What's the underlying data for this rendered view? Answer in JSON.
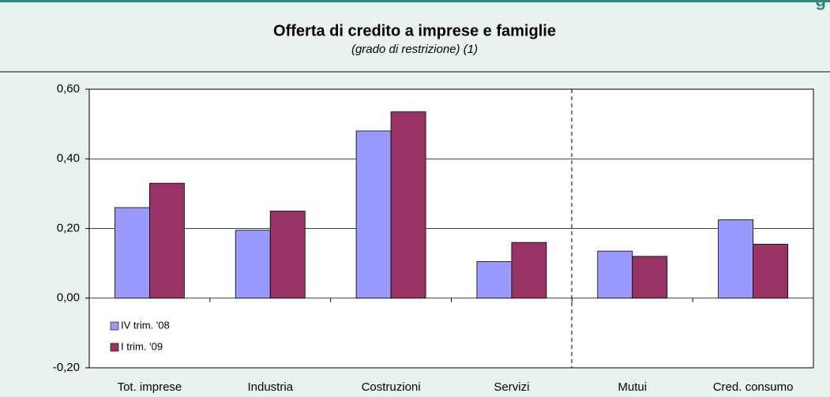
{
  "corner_label": "g",
  "chart_data": {
    "type": "bar",
    "title": "Offerta di credito a imprese e famiglie",
    "subtitle": "(grado di restrizione) (1)",
    "categories": [
      "Tot. imprese",
      "Industria",
      "Costruzioni",
      "Servizi",
      "Mutui",
      "Cred. consumo"
    ],
    "series": [
      {
        "name": "IV trim. '08",
        "color": "#9999ff",
        "values": [
          0.26,
          0.195,
          0.48,
          0.105,
          0.135,
          0.225
        ]
      },
      {
        "name": "I trim. '09",
        "color": "#993366",
        "values": [
          0.33,
          0.25,
          0.535,
          0.16,
          0.12,
          0.155
        ]
      }
    ],
    "ylim": [
      -0.2,
      0.6
    ],
    "yticks": [
      {
        "value": -0.2,
        "label": "-0,20"
      },
      {
        "value": 0,
        "label": "0,00"
      },
      {
        "value": 0.2,
        "label": "0,20"
      },
      {
        "value": 0.4,
        "label": "0,40"
      },
      {
        "value": 0.6,
        "label": "0,60"
      }
    ],
    "grid": true,
    "legend": "lower-left"
  }
}
